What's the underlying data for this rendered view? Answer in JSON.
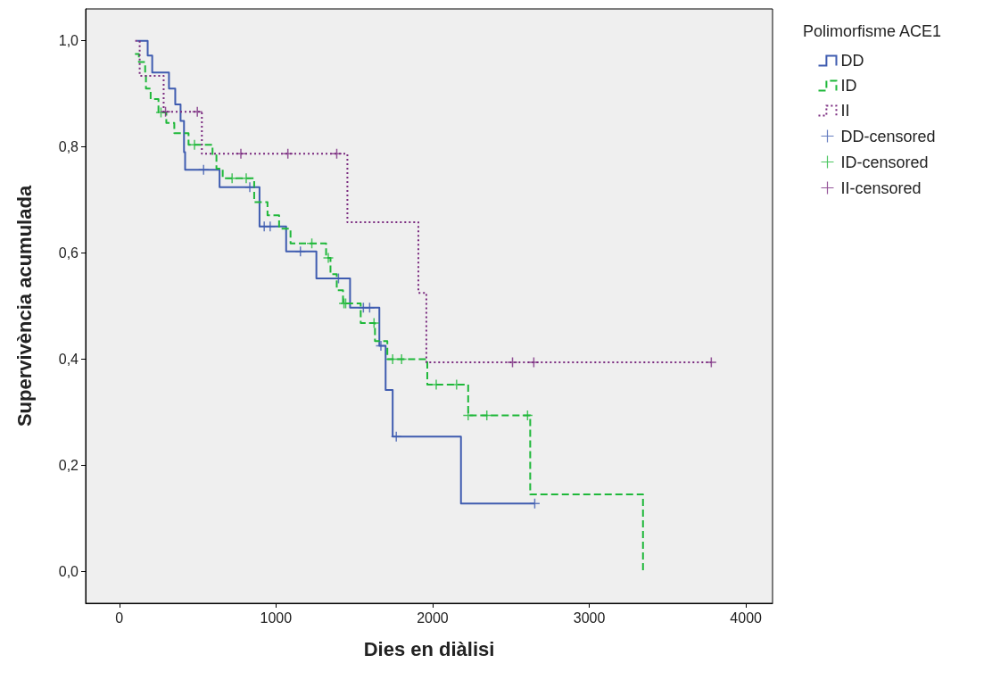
{
  "chart_data": {
    "type": "step",
    "xlabel": "Dies en diàlisi",
    "ylabel": "Supervivència acumulada",
    "legend_title": "Polimorfisme ACE1",
    "legend": "right",
    "grid": false,
    "xlim": [
      -215,
      4170
    ],
    "xticks": [
      0,
      1000,
      2000,
      3000,
      4000
    ],
    "ylim": [
      -0.06,
      1.06
    ],
    "yticks": [
      {
        "value": 0,
        "label": "0,0"
      },
      {
        "value": 0.2,
        "label": "0,2"
      },
      {
        "value": 0.4,
        "label": "0,4"
      },
      {
        "value": 0.6,
        "label": "0,6"
      },
      {
        "value": 0.8,
        "label": "0,8"
      },
      {
        "value": 1,
        "label": "1,0"
      }
    ],
    "series": [
      {
        "name": "DD",
        "color": "#3f5cb0",
        "line_style": "solid",
        "marker": "none",
        "x": [
          113,
          181,
          210,
          317,
          357,
          391,
          413,
          420,
          640,
          895,
          1065,
          1258,
          1473,
          1660,
          1700,
          1745,
          2181,
          2652
        ],
        "values": [
          1.0,
          0.972,
          0.94,
          0.91,
          0.88,
          0.849,
          0.79,
          0.757,
          0.724,
          0.65,
          0.603,
          0.552,
          0.497,
          0.425,
          0.342,
          0.254,
          0.128,
          0.128
        ]
      },
      {
        "name": "ID",
        "color": "#1fb83a",
        "line_style": "dashed",
        "marker": "none",
        "x": [
          100,
          125,
          165,
          170,
          200,
          250,
          300,
          351,
          442,
          595,
          620,
          660,
          861,
          946,
          1020,
          1093,
          1320,
          1348,
          1388,
          1428,
          1541,
          1632,
          1711,
          1966,
          2227,
          2623,
          3343
        ],
        "values": [
          0.975,
          0.96,
          0.94,
          0.91,
          0.89,
          0.865,
          0.845,
          0.826,
          0.804,
          0.784,
          0.759,
          0.741,
          0.696,
          0.671,
          0.646,
          0.618,
          0.591,
          0.56,
          0.53,
          0.505,
          0.468,
          0.434,
          0.4,
          0.352,
          0.294,
          0.145,
          0
        ]
      },
      {
        "name": "II",
        "color": "#7a2a7f",
        "line_style": "dotted",
        "marker": "none",
        "x": [
          102,
          130,
          283,
          527,
          1456,
          1909,
          1960,
          3779
        ],
        "values": [
          1.0,
          0.934,
          0.866,
          0.787,
          0.658,
          0.525,
          0.394,
          0.394
        ]
      },
      {
        "name": "DD-censored",
        "type": "scatter",
        "color": "#3f5cb0",
        "marker": "cross",
        "x": [
          538,
          833,
          925,
          963,
          1156,
          1399,
          1558,
          1598,
          1670,
          1768,
          2652
        ],
        "values": [
          0.757,
          0.724,
          0.65,
          0.65,
          0.603,
          0.552,
          0.497,
          0.497,
          0.425,
          0.254,
          0.128
        ]
      },
      {
        "name": "ID-censored",
        "type": "scatter",
        "color": "#1fb83a",
        "marker": "cross",
        "x": [
          266,
          480,
          720,
          810,
          1229,
          1334,
          1434,
          1445,
          1626,
          1745,
          1802,
          2023,
          2153,
          2227,
          2346,
          2606
        ],
        "values": [
          0.865,
          0.804,
          0.741,
          0.741,
          0.618,
          0.591,
          0.505,
          0.505,
          0.468,
          0.4,
          0.4,
          0.352,
          0.352,
          0.294,
          0.294,
          0.294
        ]
      },
      {
        "name": "II-censored",
        "type": "scatter",
        "color": "#7a2a7f",
        "marker": "cross",
        "x": [
          295,
          498,
          776,
          1076,
          1388,
          2510,
          2646,
          3779
        ],
        "values": [
          0.866,
          0.866,
          0.787,
          0.787,
          0.787,
          0.394,
          0.394,
          0.394
        ]
      }
    ]
  }
}
